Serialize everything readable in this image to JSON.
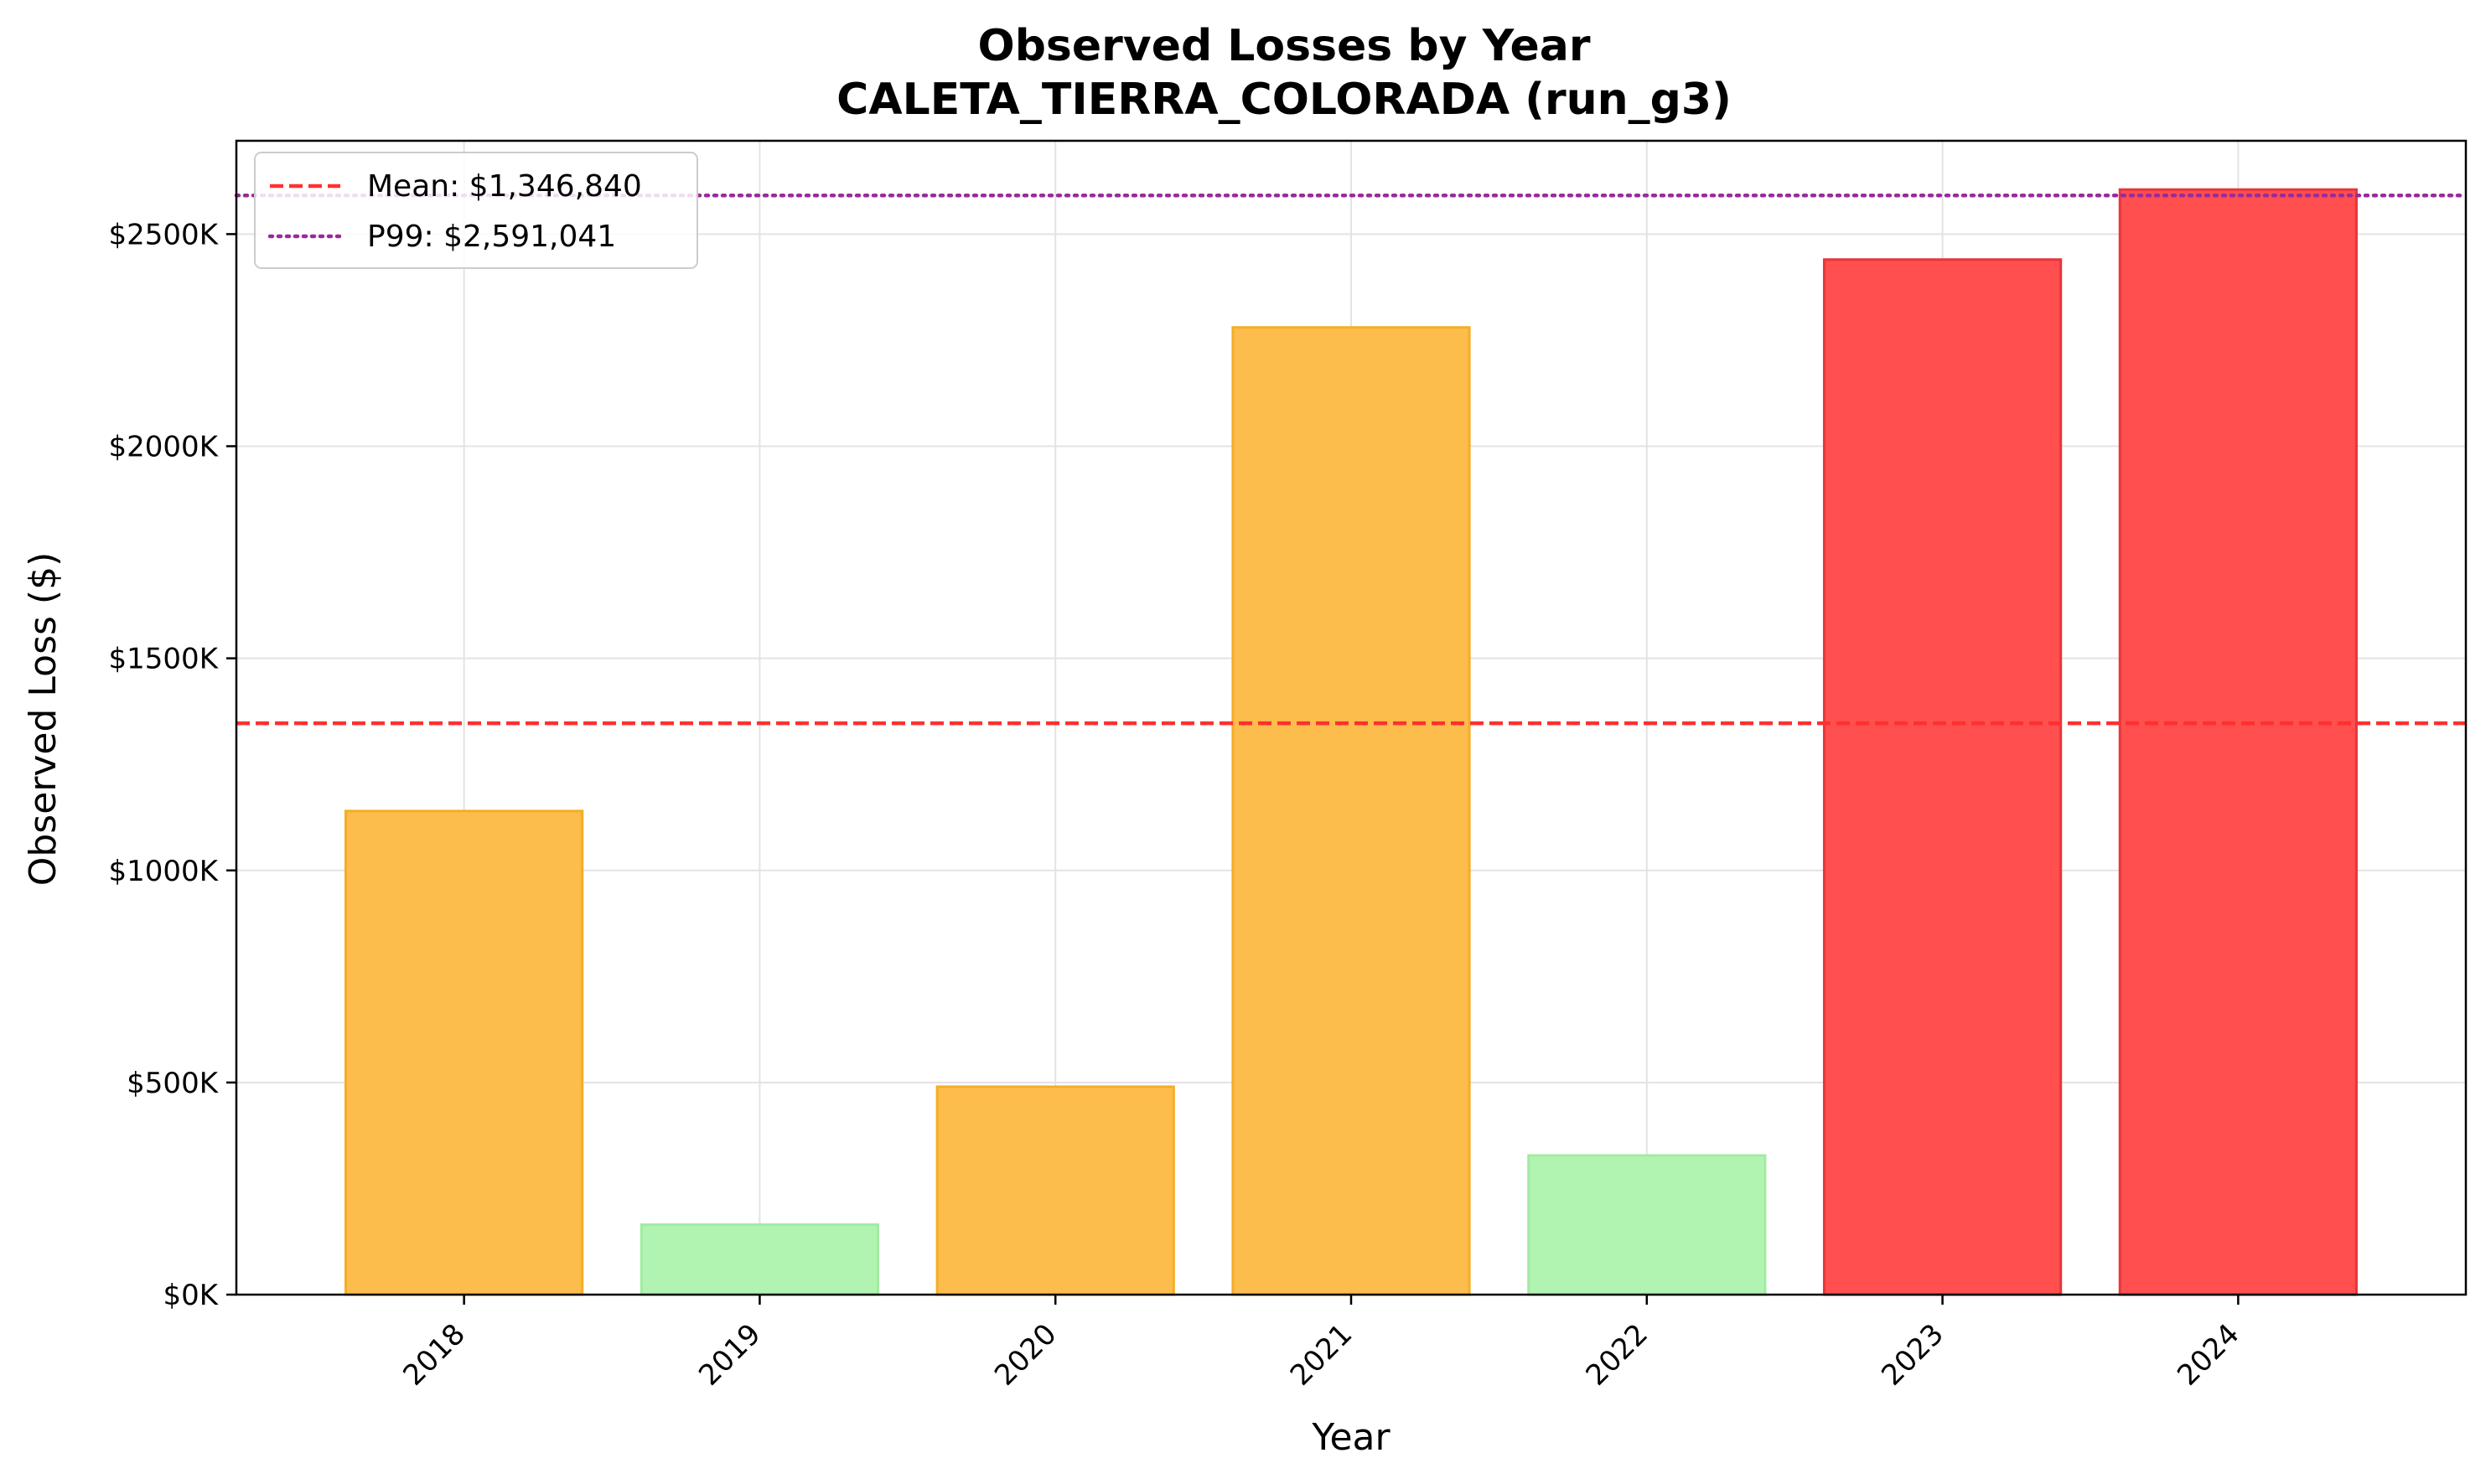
{
  "chart_data": {
    "type": "bar",
    "title": "Observed Losses by Year",
    "subtitle": "CALETA_TIERRA_COLORADA (run_g3)",
    "xlabel": "Year",
    "ylabel": "Observed Loss ($)",
    "categories": [
      "2018",
      "2019",
      "2020",
      "2021",
      "2022",
      "2023",
      "2024"
    ],
    "values": [
      1140000,
      165000,
      490000,
      2280000,
      328000,
      2440000,
      2605000
    ],
    "bar_colors": [
      "#fdbd4d",
      "#b1f4b1",
      "#fdbd4d",
      "#fdbd4d",
      "#b1f4b1",
      "#ff4f4f",
      "#ff4f4f"
    ],
    "bar_edge_colors": [
      "#f5ad27",
      "#a2eba2",
      "#f5ad27",
      "#f5ad27",
      "#a2eba2",
      "#e8353a",
      "#e8353a"
    ],
    "ylim": [
      0,
      2720000
    ],
    "yticks": [
      0,
      500000,
      1000000,
      1500000,
      2000000,
      2500000
    ],
    "ytick_labels": [
      "$0K",
      "$500K",
      "$1000K",
      "$1500K",
      "$2000K",
      "$2500K"
    ],
    "grid": true,
    "reference_lines": [
      {
        "name": "Mean",
        "label": "Mean: $1,346,840",
        "value": 1346840,
        "style": "dashed",
        "color": "#ff3030"
      },
      {
        "name": "P99",
        "label": "P99: $2,591,041",
        "value": 2591041,
        "style": "dotted",
        "color": "#9b2a9b"
      }
    ],
    "legend_position": "top-left"
  }
}
